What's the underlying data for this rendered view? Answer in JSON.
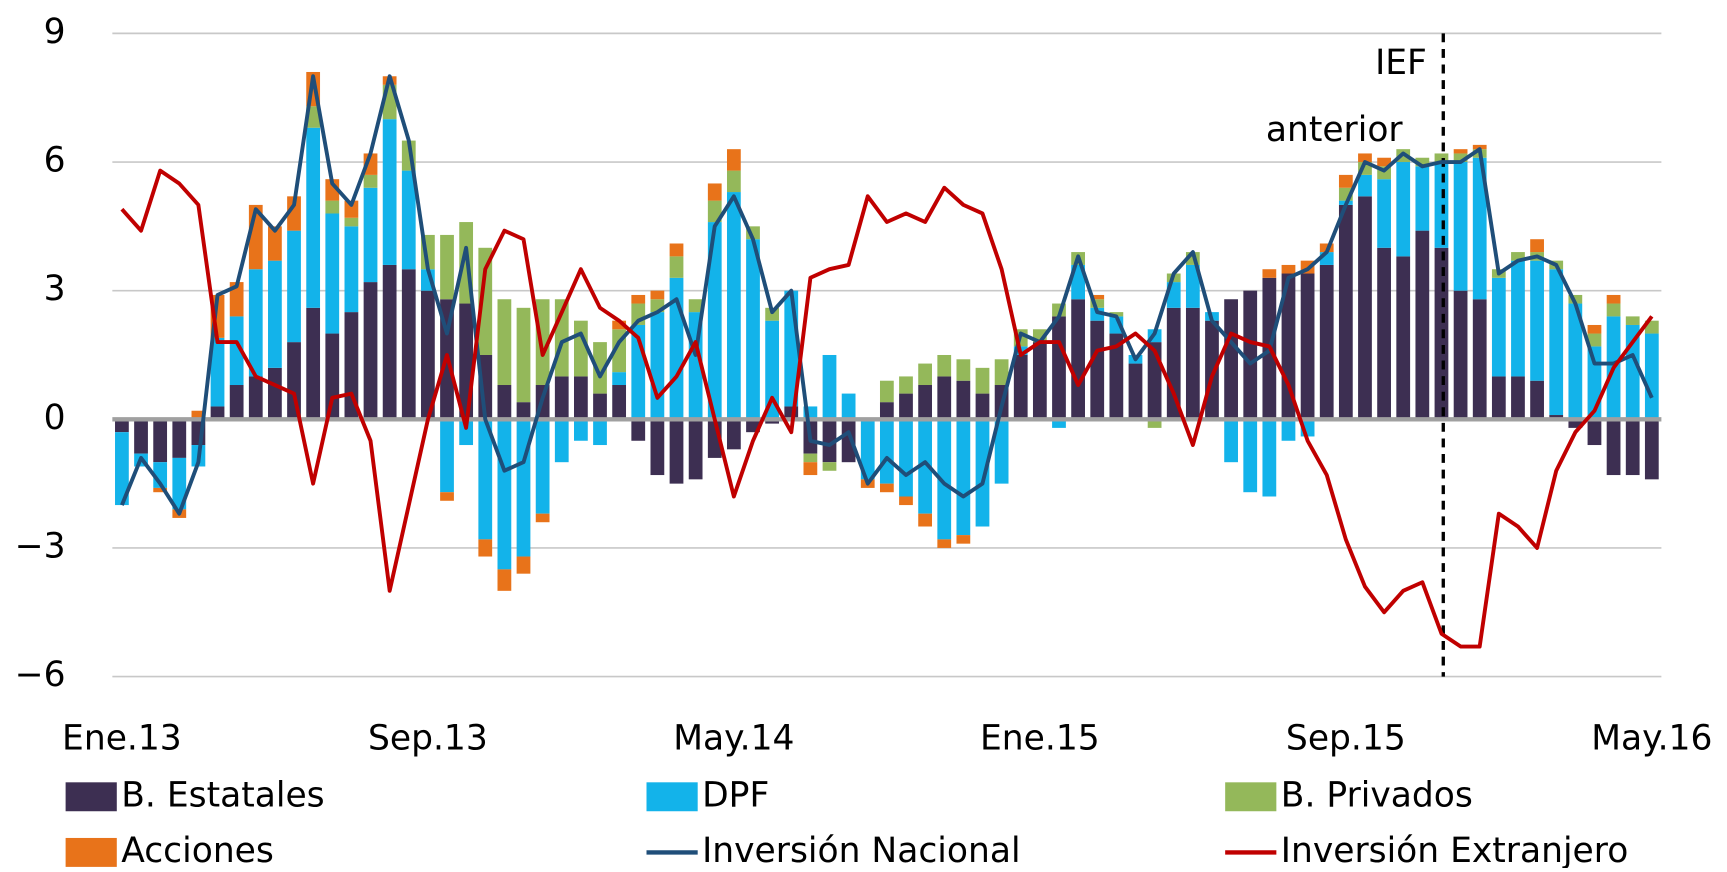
{
  "chart_data": {
    "type": "bar",
    "categories": [
      "Ene.13",
      null,
      null,
      null,
      null,
      null,
      null,
      null,
      null,
      null,
      null,
      null,
      null,
      null,
      null,
      null,
      "Sep.13",
      null,
      null,
      null,
      null,
      null,
      null,
      null,
      null,
      null,
      null,
      null,
      null,
      null,
      null,
      null,
      "May.14",
      null,
      null,
      null,
      null,
      null,
      null,
      null,
      null,
      null,
      null,
      null,
      null,
      null,
      null,
      null,
      "Ene.15",
      null,
      null,
      null,
      null,
      null,
      null,
      null,
      null,
      null,
      null,
      null,
      null,
      null,
      null,
      null,
      "Sep.15",
      null,
      null,
      null,
      null,
      null,
      null,
      null,
      null,
      null,
      null,
      null,
      null,
      null,
      null,
      null,
      "May.16"
    ],
    "series": [
      {
        "name": "B. Estatales",
        "type": "bar",
        "color": "#3d2f52",
        "values": [
          -0.3,
          -0.8,
          -1.0,
          -0.9,
          -0.6,
          0.3,
          0.8,
          1.0,
          1.2,
          1.8,
          2.6,
          2.0,
          2.5,
          3.2,
          3.6,
          3.5,
          3.0,
          2.8,
          2.7,
          1.5,
          0.8,
          0.4,
          0.8,
          1.0,
          1.0,
          0.6,
          0.8,
          -0.5,
          -1.3,
          -1.5,
          -1.4,
          -0.9,
          -0.7,
          -0.3,
          -0.1,
          0.3,
          -0.8,
          -1.0,
          -1.0,
          0,
          0.4,
          0.6,
          0.8,
          1.0,
          0.9,
          0.6,
          0.8,
          1.5,
          1.8,
          2.4,
          2.8,
          2.3,
          2.0,
          1.3,
          1.8,
          2.6,
          2.6,
          2.3,
          2.8,
          3.0,
          3.3,
          3.4,
          3.4,
          3.6,
          5.0,
          5.2,
          4.0,
          3.8,
          4.4,
          4.0,
          3.0,
          2.8,
          1.0,
          1.0,
          0.9,
          0.1,
          -0.2,
          -0.6,
          -1.3,
          -1.3,
          -1.4
        ]
      },
      {
        "name": "DPF",
        "type": "bar",
        "color": "#13b3ea",
        "values": [
          -1.7,
          -0.3,
          -0.6,
          -1.2,
          -0.5,
          1.6,
          1.6,
          2.5,
          2.5,
          2.6,
          4.2,
          2.8,
          2.0,
          2.2,
          3.4,
          2.3,
          0.5,
          -1.7,
          -0.6,
          -2.8,
          -3.5,
          -3.2,
          -2.2,
          -1.0,
          -0.5,
          -0.6,
          0.3,
          2.2,
          2.5,
          3.3,
          2.5,
          4.6,
          5.3,
          4.2,
          2.3,
          2.7,
          0.3,
          1.5,
          0.6,
          -1.4,
          -1.5,
          -1.8,
          -2.2,
          -2.8,
          -2.7,
          -2.5,
          -1.5,
          0.2,
          0,
          -0.2,
          0.8,
          0.3,
          0.4,
          0.2,
          0.3,
          0.6,
          1.0,
          0.2,
          -1.0,
          -1.7,
          -1.8,
          -0.5,
          -0.4,
          0.3,
          0.1,
          0.5,
          1.6,
          2.2,
          1.5,
          2.0,
          3.0,
          3.3,
          2.3,
          2.7,
          2.8,
          3.4,
          2.7,
          1.7,
          2.4,
          2.2,
          2.0
        ]
      },
      {
        "name": "B. Privados",
        "type": "bar",
        "color": "#94b85a",
        "values": [
          0,
          0,
          0,
          0,
          0,
          0,
          0,
          0,
          0,
          0,
          0.5,
          0.3,
          0.2,
          0.3,
          0.8,
          0.7,
          0.8,
          1.5,
          1.9,
          2.5,
          2.0,
          2.2,
          2.0,
          1.8,
          1.3,
          1.2,
          1.0,
          0.5,
          0.3,
          0.5,
          0.3,
          0.5,
          0.5,
          0.3,
          0.3,
          0,
          -0.2,
          -0.2,
          0,
          0,
          0.5,
          0.4,
          0.5,
          0.5,
          0.5,
          0.6,
          0.6,
          0.4,
          0.3,
          0.3,
          0.3,
          0.2,
          0.1,
          0,
          -0.2,
          0.2,
          0.3,
          0,
          0,
          0,
          0,
          0,
          0,
          0,
          0.3,
          0.3,
          0.3,
          0.3,
          0.2,
          0.2,
          0.2,
          0.2,
          0.2,
          0.2,
          0.2,
          0.2,
          0.2,
          0.3,
          0.3,
          0.2,
          0.3
        ]
      },
      {
        "name": "Acciones",
        "type": "bar",
        "color": "#e8731a",
        "values": [
          0,
          0,
          -0.1,
          -0.2,
          0.2,
          1.0,
          0.8,
          1.5,
          0.8,
          0.8,
          0.8,
          0.5,
          0.4,
          0.5,
          0.2,
          0,
          0,
          -0.2,
          0,
          -0.4,
          -0.5,
          -0.4,
          -0.2,
          0,
          0,
          0,
          0.2,
          0.2,
          0.2,
          0.3,
          0,
          0.4,
          0.5,
          0,
          0,
          0,
          -0.3,
          0,
          0,
          -0.2,
          -0.2,
          -0.2,
          -0.3,
          -0.2,
          -0.2,
          0,
          0,
          0,
          0,
          0,
          0,
          0.1,
          0,
          0,
          0,
          0,
          0,
          0,
          0,
          0,
          0.2,
          0.2,
          0.3,
          0.2,
          0.3,
          0.2,
          0.2,
          0,
          0,
          0,
          0.1,
          0.1,
          0,
          0,
          0.3,
          0,
          0,
          0.2,
          0.2,
          0,
          0
        ]
      },
      {
        "name": "Inversión Nacional",
        "type": "line",
        "color": "#1f4e79",
        "values": [
          -2.0,
          -0.9,
          -1.5,
          -2.2,
          -1.0,
          2.9,
          3.1,
          4.9,
          4.4,
          5.0,
          8.0,
          5.5,
          5.0,
          6.2,
          8.0,
          6.5,
          3.5,
          2.0,
          4.0,
          0.0,
          -1.2,
          -1.0,
          0.5,
          1.8,
          2.0,
          1.0,
          1.8,
          2.3,
          2.5,
          2.8,
          1.5,
          4.5,
          5.2,
          4.2,
          2.5,
          3.0,
          -0.5,
          -0.6,
          -0.3,
          -1.5,
          -0.9,
          -1.3,
          -1.0,
          -1.5,
          -1.8,
          -1.5,
          0.3,
          2.0,
          1.8,
          2.4,
          3.8,
          2.5,
          2.4,
          1.4,
          2.0,
          3.4,
          3.9,
          2.3,
          1.8,
          1.3,
          1.6,
          3.3,
          3.5,
          3.9,
          5.0,
          6.0,
          5.8,
          6.2,
          5.9,
          6.0,
          6.0,
          6.3,
          3.4,
          3.7,
          3.8,
          3.6,
          2.7,
          1.3,
          1.3,
          1.5,
          0.5
        ]
      },
      {
        "name": "Inversión Extranjero",
        "type": "line",
        "color": "#c00000",
        "values": [
          4.9,
          4.4,
          5.8,
          5.5,
          5.0,
          1.8,
          1.8,
          1.0,
          0.8,
          0.6,
          -1.5,
          0.5,
          0.6,
          -0.5,
          -4.0,
          -2.0,
          0.0,
          1.5,
          -0.2,
          3.5,
          4.4,
          4.2,
          1.5,
          2.5,
          3.5,
          2.6,
          2.3,
          1.9,
          0.5,
          1.0,
          1.8,
          0.0,
          -1.8,
          -0.5,
          0.5,
          -0.3,
          3.3,
          3.5,
          3.6,
          5.2,
          4.6,
          4.8,
          4.6,
          5.4,
          5.0,
          4.8,
          3.5,
          1.5,
          1.8,
          1.8,
          0.8,
          1.6,
          1.7,
          2.0,
          1.6,
          0.6,
          -0.6,
          1.0,
          2.0,
          1.8,
          1.7,
          0.8,
          -0.5,
          -1.3,
          -2.8,
          -3.9,
          -4.5,
          -4.0,
          -3.8,
          -5.0,
          -5.3,
          -5.3,
          -2.2,
          -2.5,
          -3.0,
          -1.2,
          -0.3,
          0.2,
          1.2,
          1.8,
          2.4
        ]
      }
    ],
    "ylim": [
      -6,
      9
    ],
    "yticks": [
      {
        "value": -6,
        "label": "−6"
      },
      {
        "value": -3,
        "label": "−3"
      },
      0,
      3,
      6,
      9
    ],
    "grid": true,
    "annotation": [
      "IEF",
      "anterior"
    ]
  }
}
